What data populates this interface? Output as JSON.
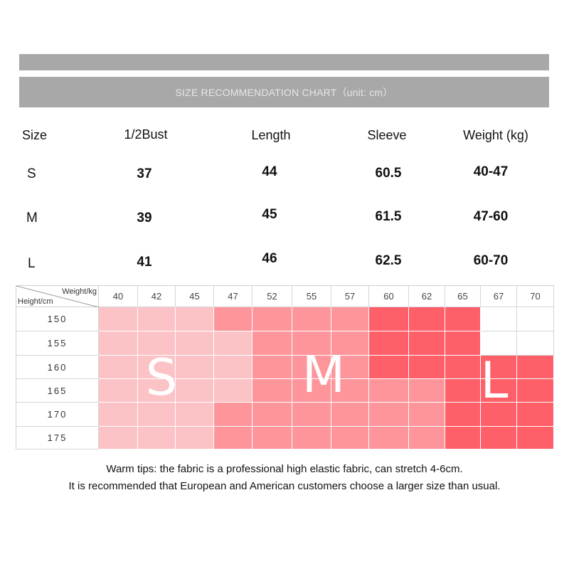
{
  "title": "SIZE RECOMMENDATION CHART（unit: cm）",
  "size_table": {
    "headers": [
      "Size",
      "1/2Bust",
      "Length",
      "Sleeve",
      "Weight (kg)"
    ],
    "rows": [
      [
        "S",
        "37",
        "44",
        "60.5",
        "40-47"
      ],
      [
        "M",
        "39",
        "45",
        "61.5",
        "47-60"
      ],
      [
        "L",
        "41",
        "46",
        "62.5",
        "60-70"
      ]
    ]
  },
  "grid": {
    "corner_weight_label": "Weight/kg",
    "corner_height_label": "Height/cm",
    "weights": [
      "40",
      "42",
      "45",
      "47",
      "52",
      "55",
      "57",
      "60",
      "62",
      "65",
      "67",
      "70"
    ],
    "heights": [
      "150",
      "155",
      "160",
      "165",
      "170",
      "175"
    ],
    "zones": [
      [
        "S",
        "S",
        "S",
        "M",
        "M",
        "M",
        "M",
        "L",
        "L",
        "L",
        "",
        ""
      ],
      [
        "S",
        "S",
        "S",
        "S",
        "M",
        "M",
        "M",
        "L",
        "L",
        "L",
        "",
        ""
      ],
      [
        "S",
        "S",
        "S",
        "S",
        "M",
        "M",
        "M",
        "L",
        "L",
        "L",
        "L",
        "L"
      ],
      [
        "S",
        "S",
        "S",
        "S",
        "M",
        "M",
        "M",
        "M",
        "M",
        "L",
        "L",
        "L"
      ],
      [
        "S",
        "S",
        "S",
        "M",
        "M",
        "M",
        "M",
        "M",
        "M",
        "L",
        "L",
        "L"
      ],
      [
        "S",
        "S",
        "S",
        "M",
        "M",
        "M",
        "M",
        "M",
        "M",
        "L",
        "L",
        "L"
      ]
    ],
    "zone_colors": {
      "S": "#fcc3c7",
      "M": "#fd959b",
      "L": "#fe5f69",
      "": "#ffffff"
    },
    "labels": [
      "S",
      "M",
      "L"
    ]
  },
  "tips": [
    "Warm tips: the fabric is a professional high elastic fabric, can stretch 4-6cm.",
    "It is recommended that European and American customers choose a larger size than usual."
  ]
}
